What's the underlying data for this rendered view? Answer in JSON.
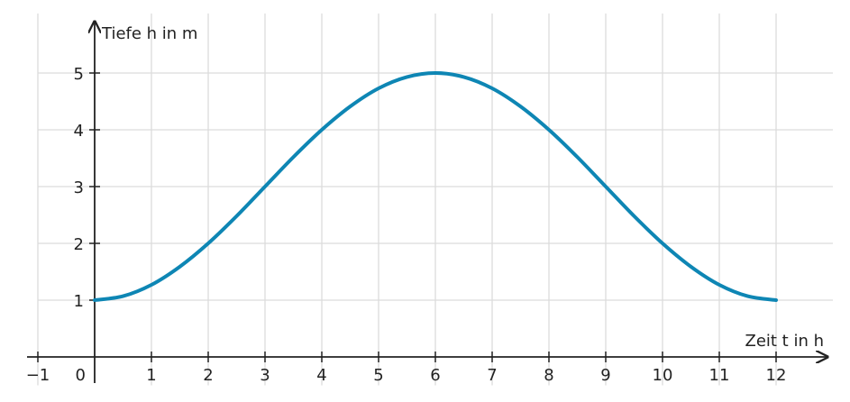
{
  "chart_data": {
    "type": "line",
    "x_label": "Zeit t in h",
    "y_label": "Tiefe h in m",
    "x": [
      0,
      0.5,
      1,
      1.5,
      2,
      2.5,
      3,
      3.5,
      4,
      4.5,
      5,
      5.5,
      6,
      6.5,
      7,
      7.5,
      8,
      8.5,
      9,
      9.5,
      10,
      10.5,
      11,
      11.5,
      12
    ],
    "series": [
      {
        "color": "#0e86b4",
        "values": [
          1,
          1.07,
          1.27,
          1.59,
          2,
          2.48,
          3,
          3.52,
          4,
          4.41,
          4.73,
          4.93,
          5,
          4.93,
          4.73,
          4.41,
          4,
          3.52,
          3,
          2.48,
          2,
          1.59,
          1.27,
          1.07,
          1
        ]
      }
    ],
    "xlim": [
      -1,
      13
    ],
    "ylim": [
      -0.5,
      6
    ],
    "xticks": [
      {
        "value": -1,
        "label": "−1"
      },
      0,
      1,
      2,
      3,
      4,
      5,
      6,
      7,
      8,
      9,
      10,
      11,
      12
    ],
    "yticks": [
      1,
      2,
      3,
      4,
      5
    ],
    "grid": true
  }
}
